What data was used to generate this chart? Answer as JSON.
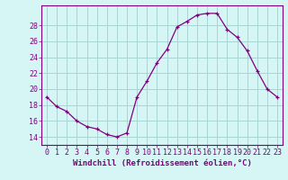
{
  "x": [
    0,
    1,
    2,
    3,
    4,
    5,
    6,
    7,
    8,
    9,
    10,
    11,
    12,
    13,
    14,
    15,
    16,
    17,
    18,
    19,
    20,
    21,
    22,
    23
  ],
  "y": [
    19.0,
    17.8,
    17.2,
    16.0,
    15.3,
    15.0,
    14.3,
    14.0,
    14.5,
    19.0,
    21.0,
    23.3,
    25.0,
    27.8,
    28.5,
    29.3,
    29.5,
    29.5,
    27.5,
    26.5,
    24.8,
    22.3,
    20.0,
    19.0
  ],
  "line_color": "#800080",
  "marker": "+",
  "bg_color": "#d6f5f5",
  "grid_color": "#aad4d4",
  "xlabel": "Windchill (Refroidissement éolien,°C)",
  "ylim": [
    13.0,
    30.5
  ],
  "yticks": [
    14,
    16,
    18,
    20,
    22,
    24,
    26,
    28
  ],
  "xticks": [
    0,
    1,
    2,
    3,
    4,
    5,
    6,
    7,
    8,
    9,
    10,
    11,
    12,
    13,
    14,
    15,
    16,
    17,
    18,
    19,
    20,
    21,
    22,
    23
  ],
  "tick_color": "#800080",
  "label_color": "#800080",
  "label_fontsize": 6.5,
  "tick_fontsize": 6.0
}
